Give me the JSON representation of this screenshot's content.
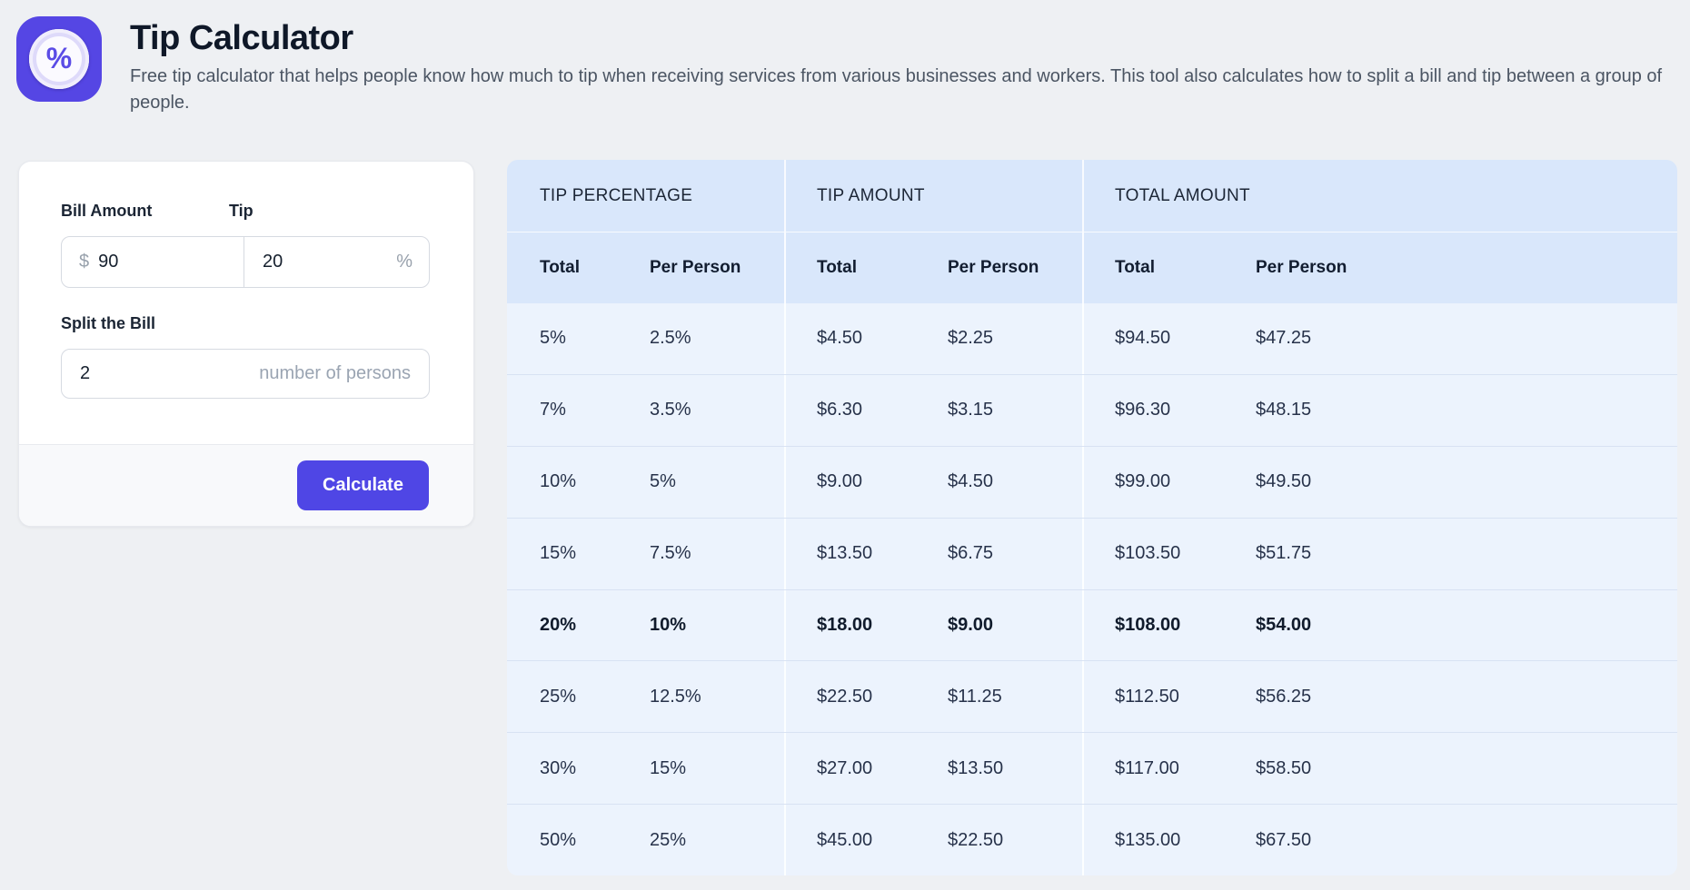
{
  "header": {
    "title": "Tip Calculator",
    "description": "Free tip calculator that helps people know how much to tip when receiving services from various businesses and workers. This tool also calculates how to split a bill and tip between a group of people.",
    "icon_glyph": "%"
  },
  "form": {
    "bill_label": "Bill Amount",
    "bill_prefix": "$",
    "bill_value": "90",
    "tip_label": "Tip",
    "tip_value": "20",
    "tip_suffix": "%",
    "split_label": "Split the Bill",
    "split_value": "2",
    "split_placeholder": "number of persons",
    "calculate_label": "Calculate"
  },
  "table": {
    "groups": [
      "TIP PERCENTAGE",
      "TIP AMOUNT",
      "TOTAL AMOUNT"
    ],
    "subheaders": [
      "Total",
      "Per Person",
      "Total",
      "Per Person",
      "Total",
      "Per Person"
    ],
    "highlighted_row_index": 4,
    "rows": [
      [
        "5%",
        "2.5%",
        "$4.50",
        "$2.25",
        "$94.50",
        "$47.25"
      ],
      [
        "7%",
        "3.5%",
        "$6.30",
        "$3.15",
        "$96.30",
        "$48.15"
      ],
      [
        "10%",
        "5%",
        "$9.00",
        "$4.50",
        "$99.00",
        "$49.50"
      ],
      [
        "15%",
        "7.5%",
        "$13.50",
        "$6.75",
        "$103.50",
        "$51.75"
      ],
      [
        "20%",
        "10%",
        "$18.00",
        "$9.00",
        "$108.00",
        "$54.00"
      ],
      [
        "25%",
        "12.5%",
        "$22.50",
        "$11.25",
        "$112.50",
        "$56.25"
      ],
      [
        "30%",
        "15%",
        "$27.00",
        "$13.50",
        "$117.00",
        "$58.50"
      ],
      [
        "50%",
        "25%",
        "$45.00",
        "$22.50",
        "$135.00",
        "$67.50"
      ]
    ]
  },
  "colors": {
    "accent_button": "#4f46e5",
    "icon_background": "#5546e4",
    "table_header_bg": "#d9e7fb",
    "table_row_bg": "#ecf3fd",
    "page_bg": "#eef0f3"
  }
}
